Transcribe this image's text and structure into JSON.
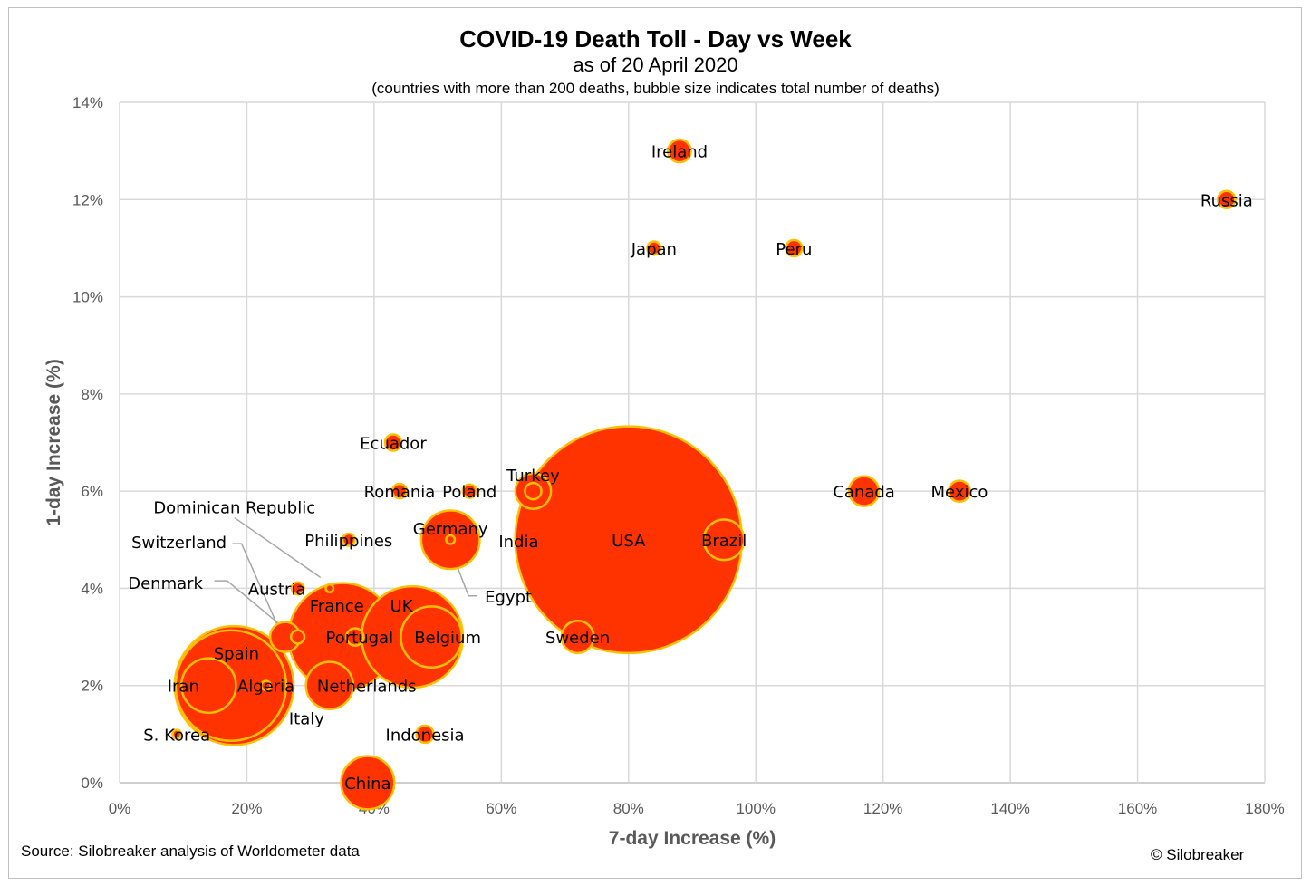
{
  "colors": {
    "bubble_fill": "#ff3300",
    "bubble_stroke": "#ffc000",
    "grid": "#d9d9d9",
    "leader": "#a6a6a6"
  },
  "footer": {
    "source": "Source: Silobreaker analysis of Worldometer data",
    "copyright": "© Silobreaker"
  },
  "chart_data": {
    "type": "bubble",
    "title": "COVID-19 Death Toll - Day vs Week",
    "subtitle": "as of 20 April 2020",
    "note": "(countries with more than 200 deaths, bubble size indicates total number of deaths)",
    "xlabel": "7-day Increase (%)",
    "ylabel": "1-day Increase (%)",
    "xlim": [
      0,
      180
    ],
    "ylim": [
      0,
      14
    ],
    "x_ticks": [
      "0%",
      "20%",
      "40%",
      "60%",
      "80%",
      "100%",
      "120%",
      "140%",
      "160%",
      "180%"
    ],
    "y_ticks": [
      "0%",
      "2%",
      "4%",
      "6%",
      "8%",
      "10%",
      "12%",
      "14%"
    ],
    "grid": true,
    "legend": "none",
    "size_unit": "relative total deaths (estimated from bubble area)",
    "points": [
      {
        "label": "Italy",
        "x": 18,
        "y": 2,
        "size": 950
      },
      {
        "label": "Spain",
        "x": 17.5,
        "y": 2,
        "size": 820
      },
      {
        "label": "Iran",
        "x": 14,
        "y": 2,
        "size": 200
      },
      {
        "label": "Algeria",
        "x": 23,
        "y": 2,
        "size": 6
      },
      {
        "label": "S. Korea",
        "x": 9,
        "y": 1,
        "size": 5
      },
      {
        "label": "France",
        "x": 35,
        "y": 3,
        "size": 780
      },
      {
        "label": "UK",
        "x": 46,
        "y": 3,
        "size": 690
      },
      {
        "label": "Belgium",
        "x": 49,
        "y": 3,
        "size": 250
      },
      {
        "label": "Portugal",
        "x": 37,
        "y": 3,
        "size": 20
      },
      {
        "label": "Netherlands",
        "x": 33,
        "y": 2,
        "size": 150
      },
      {
        "label": "Switzerland",
        "x": 26,
        "y": 3,
        "size": 60
      },
      {
        "label": "Denmark",
        "x": 28,
        "y": 3,
        "size": 12
      },
      {
        "label": "Austria",
        "x": 28,
        "y": 4,
        "size": 10
      },
      {
        "label": "Dominican Republic",
        "x": 33,
        "y": 4,
        "size": 4
      },
      {
        "label": "China",
        "x": 39,
        "y": 0,
        "size": 190
      },
      {
        "label": "Indonesia",
        "x": 48,
        "y": 1,
        "size": 20
      },
      {
        "label": "Germany",
        "x": 52,
        "y": 5,
        "size": 230
      },
      {
        "label": "Egypt",
        "x": 52,
        "y": 5,
        "size": 5
      },
      {
        "label": "Philippines",
        "x": 36,
        "y": 5,
        "size": 10
      },
      {
        "label": "Ecuador",
        "x": 43,
        "y": 7,
        "size": 18
      },
      {
        "label": "Romania",
        "x": 44,
        "y": 6,
        "size": 14
      },
      {
        "label": "Poland",
        "x": 55,
        "y": 6,
        "size": 12
      },
      {
        "label": "Turkey",
        "x": 65,
        "y": 6,
        "size": 85
      },
      {
        "label": "India",
        "x": 65,
        "y": 6,
        "size": 18
      },
      {
        "label": "USA",
        "x": 80,
        "y": 5,
        "size": 3450
      },
      {
        "label": "Brazil",
        "x": 95,
        "y": 5,
        "size": 110
      },
      {
        "label": "Sweden",
        "x": 72,
        "y": 3,
        "size": 70
      },
      {
        "label": "Canada",
        "x": 117,
        "y": 6,
        "size": 60
      },
      {
        "label": "Mexico",
        "x": 132,
        "y": 6,
        "size": 30
      },
      {
        "label": "Ireland",
        "x": 88,
        "y": 13,
        "size": 35
      },
      {
        "label": "Japan",
        "x": 84,
        "y": 11,
        "size": 12
      },
      {
        "label": "Peru",
        "x": 106,
        "y": 11,
        "size": 18
      },
      {
        "label": "Russia",
        "x": 174,
        "y": 12,
        "size": 20
      }
    ]
  }
}
